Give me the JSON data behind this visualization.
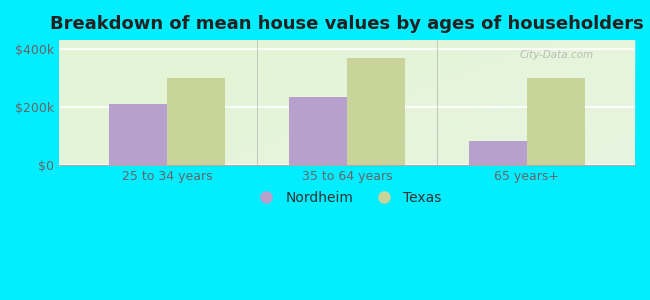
{
  "title": "Breakdown of mean house values by ages of householders",
  "categories": [
    "25 to 34 years",
    "35 to 64 years",
    "65 years+"
  ],
  "nordheim_values": [
    210000,
    235000,
    82000
  ],
  "texas_values": [
    300000,
    370000,
    300000
  ],
  "nordheim_color": "#b8a0cc",
  "texas_color": "#c8d49a",
  "background_outer": "#00eeff",
  "background_inner": "#e8f4e0",
  "ylabel_ticks": [
    0,
    200000,
    400000
  ],
  "ylabel_labels": [
    "$0",
    "$200k",
    "$400k"
  ],
  "bar_width": 0.32,
  "legend_labels": [
    "Nordheim",
    "Texas"
  ],
  "title_fontsize": 13,
  "tick_fontsize": 9,
  "legend_fontsize": 10,
  "ylim_max": 430000
}
